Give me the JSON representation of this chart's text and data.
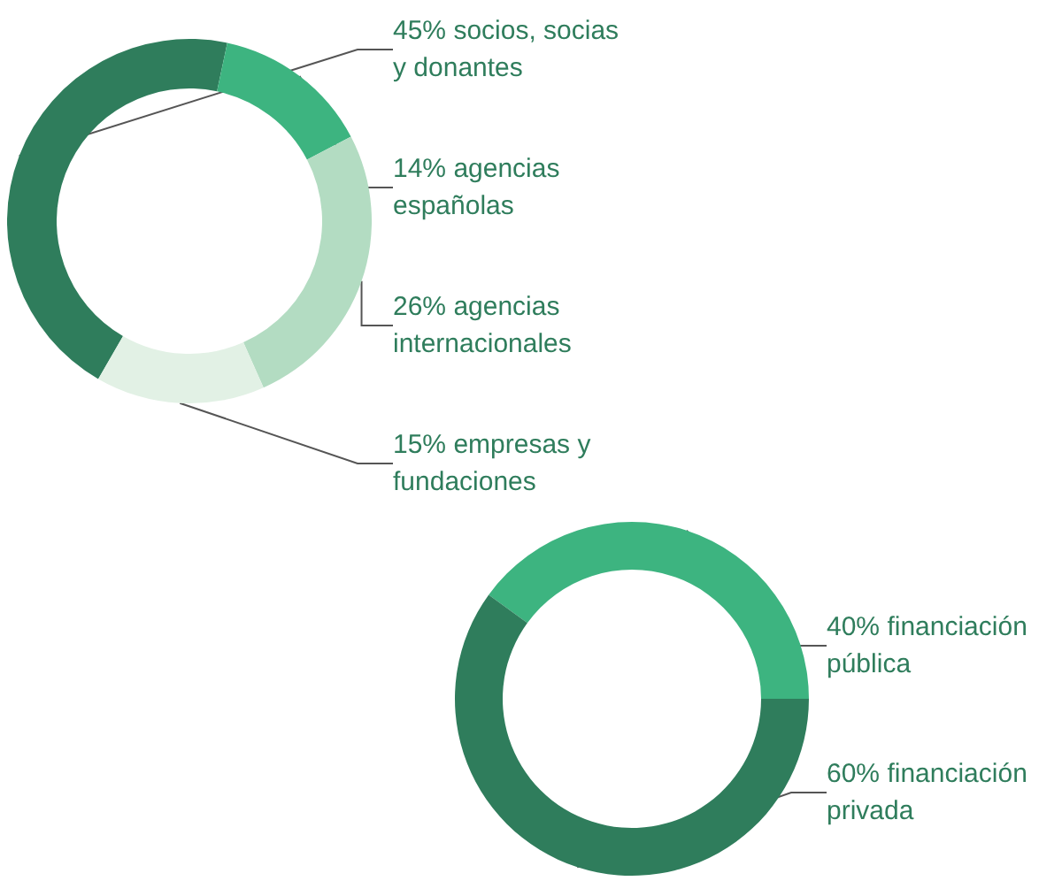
{
  "chart_data": [
    {
      "type": "donut",
      "categories": [
        "socios, socias y donantes",
        "agencias españolas",
        "agencias internacionales",
        "empresas y fundaciones"
      ],
      "values": [
        45,
        14,
        26,
        15
      ],
      "value_labels": [
        "45%",
        "14%",
        "26%",
        "15%"
      ],
      "colors": [
        "#2f7d5c",
        "#3db480",
        "#b3dcc2",
        "#e2f1e5"
      ],
      "data_labels": true,
      "legend": false
    },
    {
      "type": "donut",
      "categories": [
        "financiación pública",
        "financiación privada"
      ],
      "values": [
        40,
        60
      ],
      "value_labels": [
        "40%",
        "60%"
      ],
      "colors": [
        "#3db480",
        "#2f7d5c"
      ],
      "data_labels": true,
      "legend": false
    }
  ]
}
